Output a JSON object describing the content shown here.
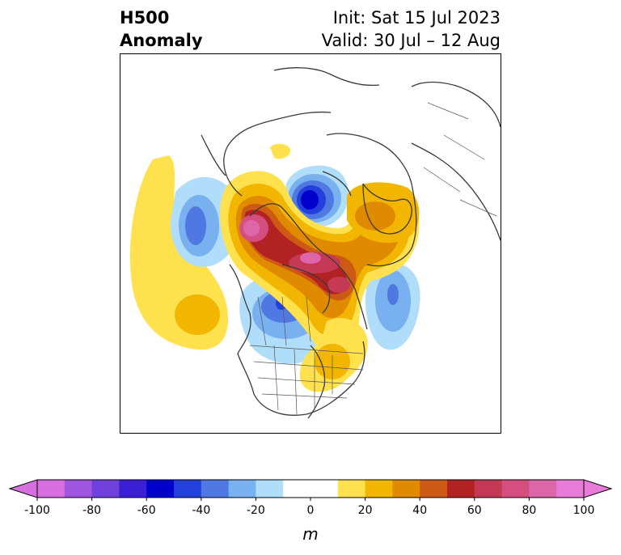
{
  "title": {
    "left_line1": "H500",
    "left_line2": "Anomaly",
    "right_line1": "Init: Sat 15 Jul 2023",
    "right_line2": "Valid: 30 Jul – 12 Aug"
  },
  "colorbar": {
    "unit": "m",
    "min": -100,
    "max": 100,
    "step": 10,
    "tick_labels": [
      "-100",
      "-80",
      "-60",
      "-40",
      "-20",
      "0",
      "20",
      "40",
      "60",
      "80",
      "100"
    ],
    "tick_values": [
      -100,
      -80,
      -60,
      -40,
      -20,
      0,
      20,
      40,
      60,
      80,
      100
    ],
    "colors": [
      "#d86fe0",
      "#a055e0",
      "#7040dd",
      "#3b1fd6",
      "#0000cc",
      "#2340dd",
      "#4f78e3",
      "#78b0f0",
      "#b0ddfa",
      "#ffffff",
      "#ffffff",
      "#ffe14d",
      "#f2b600",
      "#e08a00",
      "#cc5a14",
      "#b22222",
      "#c43a55",
      "#d44f80",
      "#dd66aa",
      "#e87ad8"
    ],
    "extend": "both"
  },
  "map": {
    "projection": "north-polar-stereographic",
    "region": "Northern Hemisphere (North America / Arctic)"
  },
  "legend_colors": {
    "positive_max": "#cc3377",
    "negative_max": "#0000cc"
  }
}
